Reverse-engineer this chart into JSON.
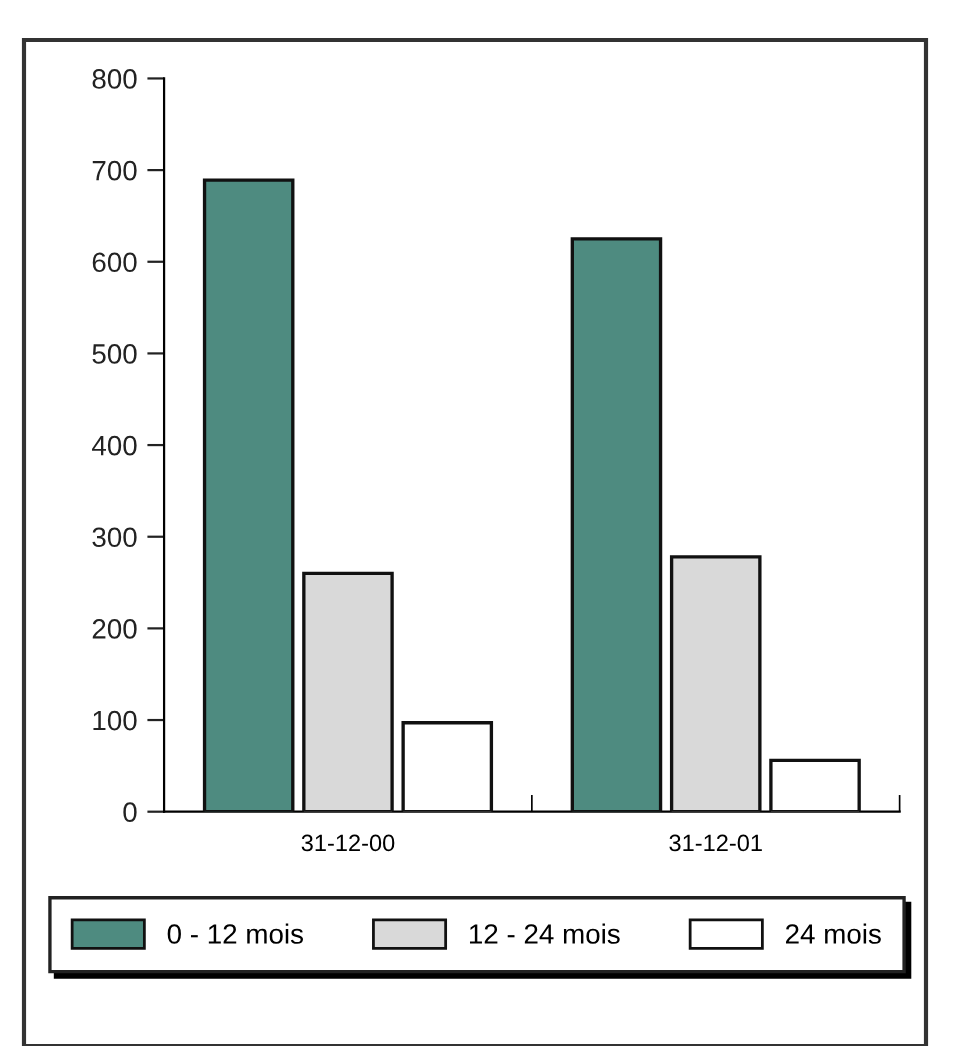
{
  "chart_data": {
    "type": "bar",
    "categories": [
      "31-12-00",
      "31-12-01"
    ],
    "series": [
      {
        "name": "0 - 12 mois",
        "color": "#4e8b80",
        "values": [
          689,
          625
        ]
      },
      {
        "name": "12 - 24 mois",
        "color": "#d9d9d9",
        "values": [
          260,
          278
        ]
      },
      {
        "name": "24 mois",
        "color": "#ffffff",
        "values": [
          97,
          56
        ]
      }
    ],
    "ylim": [
      0,
      800
    ],
    "yticks": [
      0,
      100,
      200,
      300,
      400,
      500,
      600,
      700,
      800
    ],
    "grid": false,
    "legend": "bottom"
  }
}
